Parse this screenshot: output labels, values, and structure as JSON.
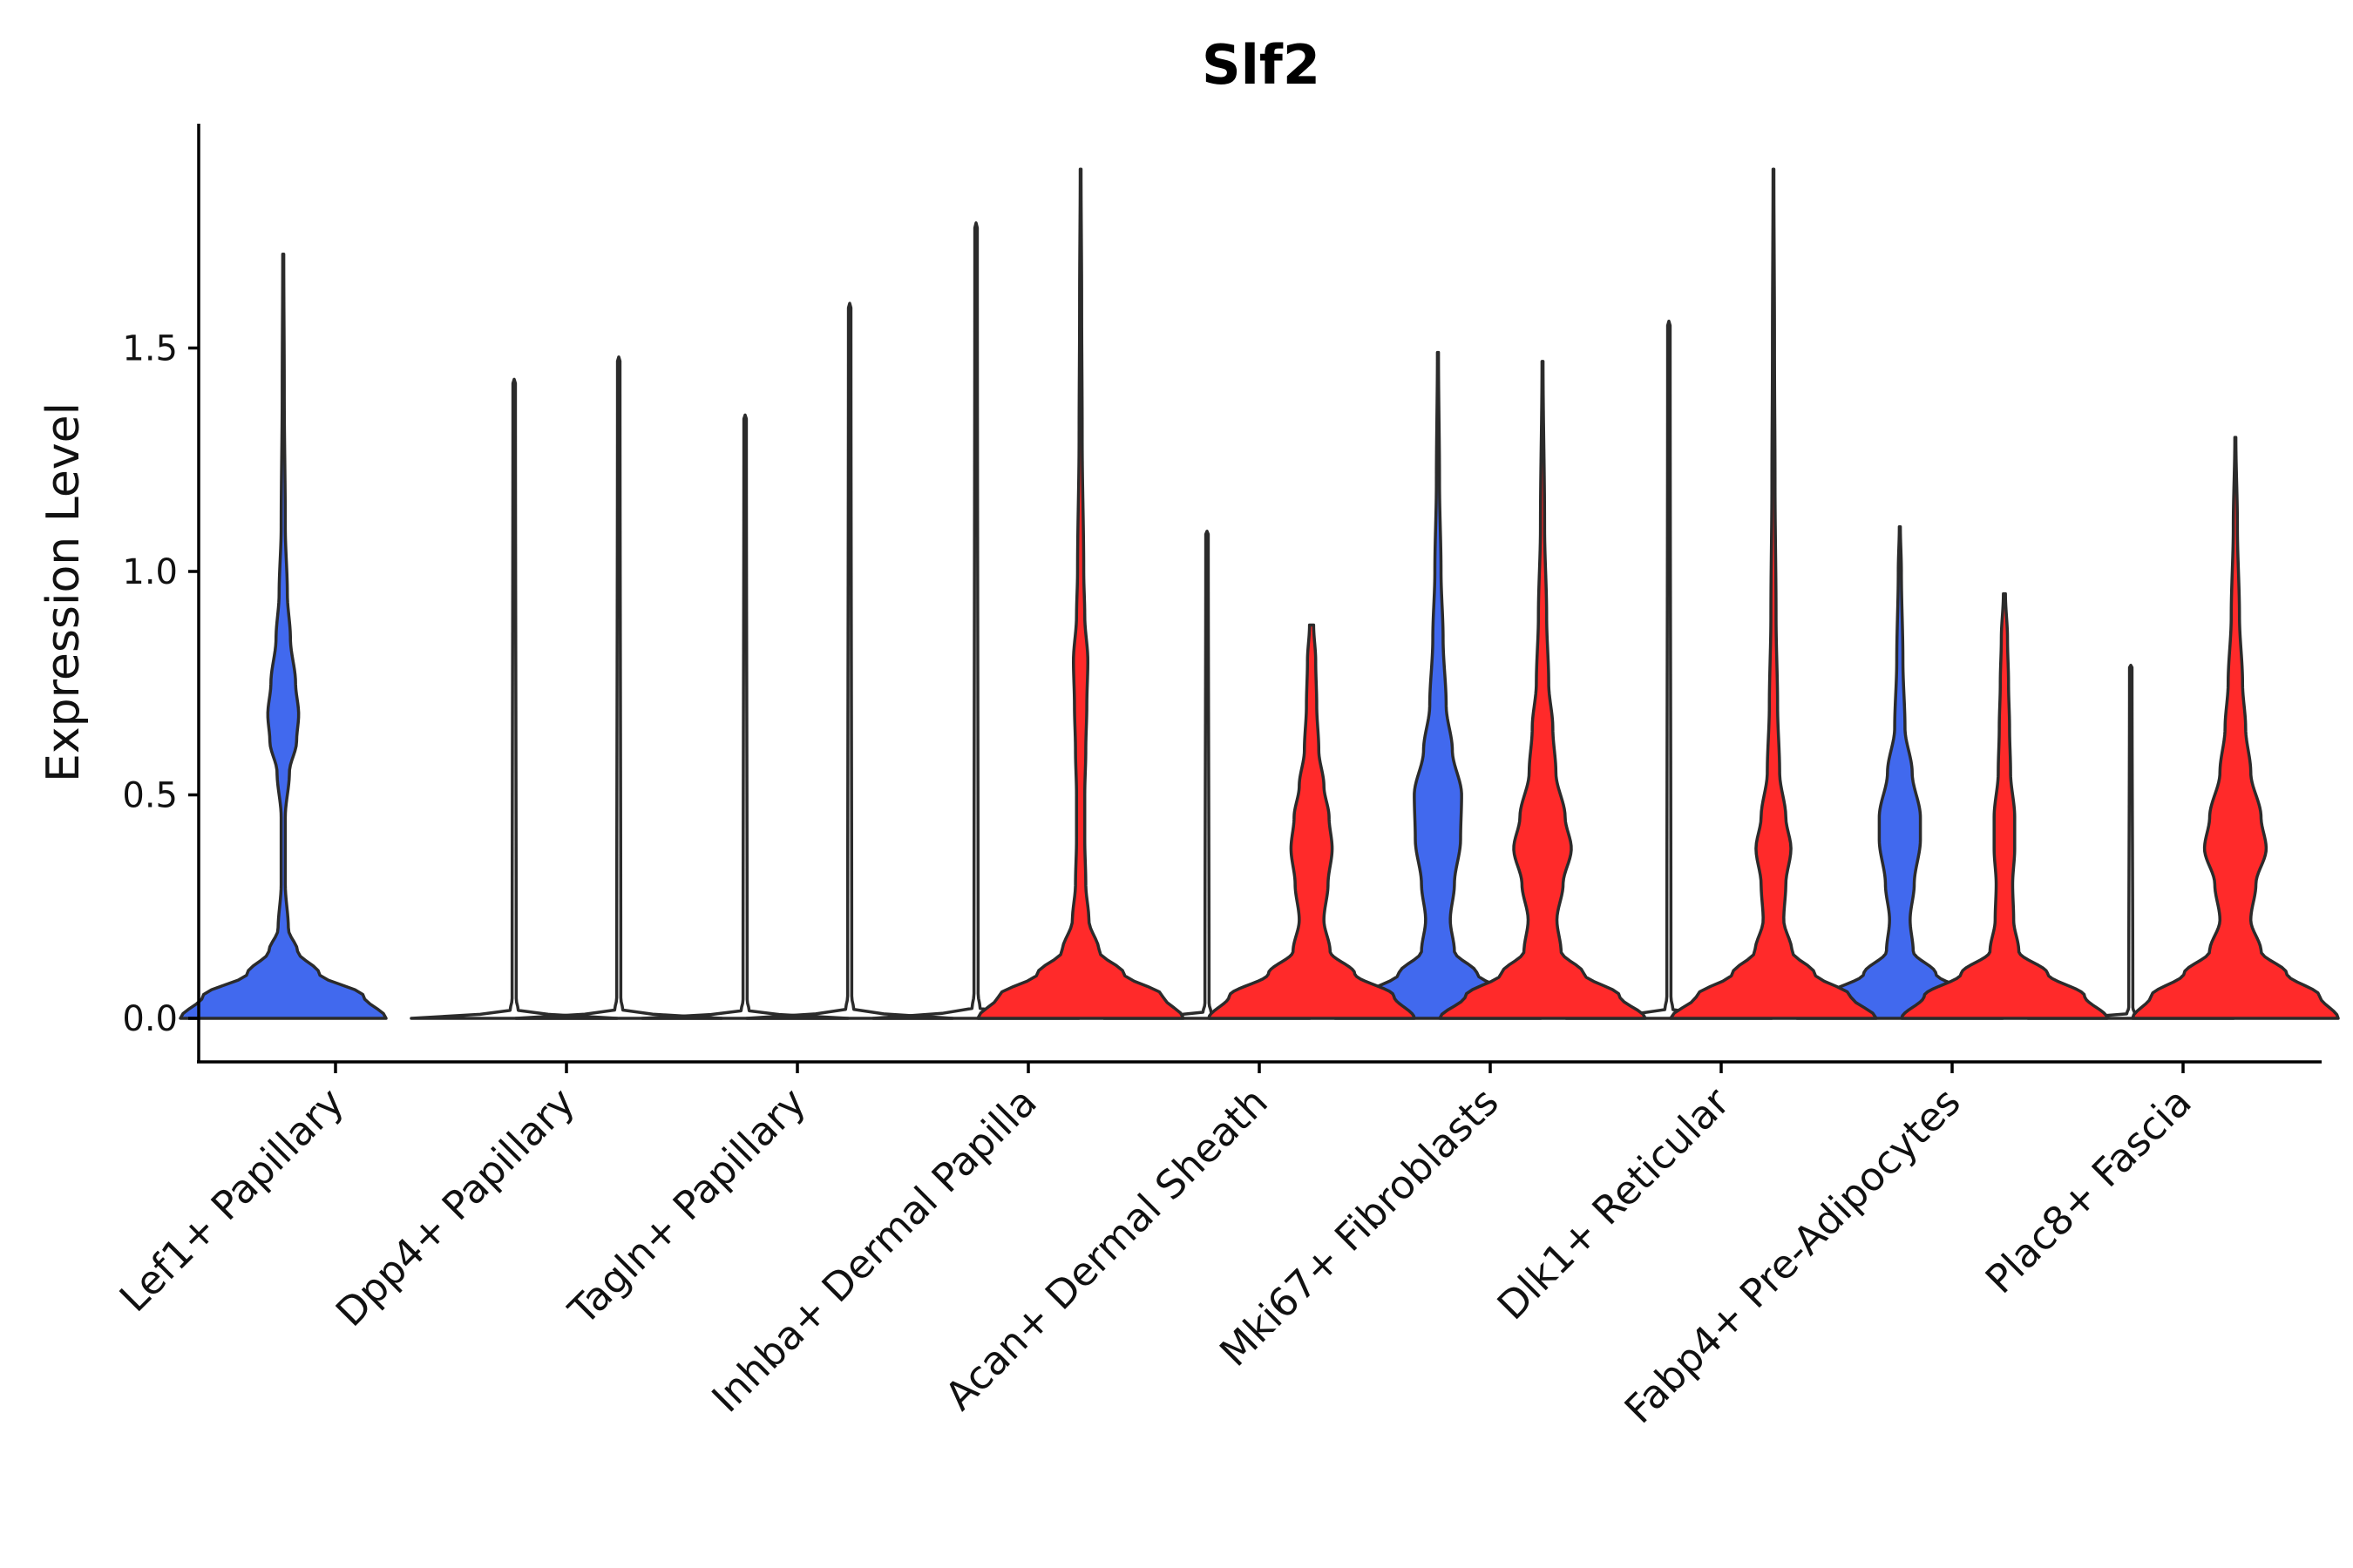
{
  "chart_data": {
    "type": "violin",
    "title": "Slf2",
    "xlabel": "",
    "ylabel": "Expression Level",
    "ylim": [
      -0.1,
      2.0
    ],
    "yticks": [
      0.0,
      0.5,
      1.0,
      1.5
    ],
    "ytick_labels": [
      "0.0",
      "0.5",
      "1.0",
      "1.5"
    ],
    "grid": false,
    "legend": "none",
    "colors": {
      "group_a": "#4169EE",
      "group_b": "#FF2A2A",
      "outline": "#2b2b2b"
    },
    "categories": [
      "Lef1+ Papillary",
      "Dpp4+ Papillary",
      "Tagln+ Papillary",
      "Inhba+ Dermal Papilla",
      "Acan+ Dermal Sheath",
      "Mki67+ Fibroblasts",
      "Dlk1+ Reticular",
      "Fabp4+ Pre-Adipocytes",
      "Plac8+ Fascia"
    ],
    "series": [
      {
        "name": "group_a",
        "color": "#4169EE",
        "violins": [
          {
            "category": "Lef1+ Papillary",
            "max": 1.71,
            "filled": true,
            "profile": [
              [
                0,
                1.0
              ],
              [
                0.05,
                0.78
              ],
              [
                0.1,
                0.35
              ],
              [
                0.15,
                0.14
              ],
              [
                0.2,
                0.05
              ],
              [
                0.3,
                0.02
              ],
              [
                0.45,
                0.02
              ],
              [
                0.55,
                0.06
              ],
              [
                0.62,
                0.13
              ],
              [
                0.68,
                0.15
              ],
              [
                0.75,
                0.12
              ],
              [
                0.85,
                0.07
              ],
              [
                0.95,
                0.04
              ],
              [
                1.1,
                0.02
              ],
              [
                1.4,
                0.01
              ],
              [
                1.71,
                0.005
              ]
            ]
          },
          {
            "category": "Dpp4+ Papillary",
            "max": 1.43,
            "filled": false
          },
          {
            "category": "Tagln+ Papillary",
            "max": 1.35,
            "filled": false
          },
          {
            "category": "Inhba+ Dermal Papilla",
            "max": 1.78,
            "filled": false
          },
          {
            "category": "Acan+ Dermal Sheath",
            "max": 1.09,
            "filled": false
          },
          {
            "category": "Mki67+ Fibroblasts",
            "max": 1.49,
            "filled": true,
            "profile": [
              [
                0,
                1.0
              ],
              [
                0.05,
                0.72
              ],
              [
                0.1,
                0.38
              ],
              [
                0.15,
                0.16
              ],
              [
                0.22,
                0.12
              ],
              [
                0.3,
                0.16
              ],
              [
                0.4,
                0.22
              ],
              [
                0.5,
                0.23
              ],
              [
                0.6,
                0.14
              ],
              [
                0.7,
                0.08
              ],
              [
                0.85,
                0.05
              ],
              [
                1.0,
                0.03
              ],
              [
                1.2,
                0.015
              ],
              [
                1.49,
                0.005
              ]
            ]
          },
          {
            "category": "Dlk1+ Reticular",
            "max": 1.56,
            "filled": false
          },
          {
            "category": "Fabp4+ Pre-Adipocytes",
            "max": 1.1,
            "filled": true,
            "profile": [
              [
                0,
                1.0
              ],
              [
                0.05,
                0.72
              ],
              [
                0.1,
                0.35
              ],
              [
                0.15,
                0.13
              ],
              [
                0.22,
                0.1
              ],
              [
                0.3,
                0.14
              ],
              [
                0.4,
                0.2
              ],
              [
                0.45,
                0.2
              ],
              [
                0.55,
                0.12
              ],
              [
                0.65,
                0.05
              ],
              [
                0.8,
                0.03
              ],
              [
                1.0,
                0.015
              ],
              [
                1.1,
                0.005
              ]
            ]
          },
          {
            "category": "Plac8+ Fascia",
            "max": 0.79,
            "filled": false
          }
        ]
      },
      {
        "name": "group_b",
        "color": "#FF2A2A",
        "violins": [
          {
            "category": "Lef1+ Papillary",
            "max": null,
            "filled": false
          },
          {
            "category": "Dpp4+ Papillary",
            "max": 1.48,
            "filled": false
          },
          {
            "category": "Tagln+ Papillary",
            "max": 1.6,
            "filled": false
          },
          {
            "category": "Inhba+ Dermal Papilla",
            "max": 1.9,
            "filled": true,
            "profile": [
              [
                0,
                1.0
              ],
              [
                0.05,
                0.8
              ],
              [
                0.1,
                0.42
              ],
              [
                0.15,
                0.18
              ],
              [
                0.22,
                0.08
              ],
              [
                0.3,
                0.05
              ],
              [
                0.4,
                0.04
              ],
              [
                0.5,
                0.04
              ],
              [
                0.6,
                0.05
              ],
              [
                0.7,
                0.06
              ],
              [
                0.8,
                0.07
              ],
              [
                0.9,
                0.04
              ],
              [
                1.0,
                0.03
              ],
              [
                1.3,
                0.015
              ],
              [
                1.6,
                0.01
              ],
              [
                1.9,
                0.004
              ]
            ]
          },
          {
            "category": "Acan+ Dermal Sheath",
            "max": 0.88,
            "filled": true,
            "profile": [
              [
                0,
                1.0
              ],
              [
                0.05,
                0.8
              ],
              [
                0.1,
                0.42
              ],
              [
                0.15,
                0.18
              ],
              [
                0.22,
                0.12
              ],
              [
                0.3,
                0.16
              ],
              [
                0.38,
                0.2
              ],
              [
                0.45,
                0.17
              ],
              [
                0.52,
                0.12
              ],
              [
                0.6,
                0.07
              ],
              [
                0.7,
                0.05
              ],
              [
                0.8,
                0.04
              ],
              [
                0.88,
                0.02
              ]
            ]
          },
          {
            "category": "Mki67+ Fibroblasts",
            "max": 1.47,
            "filled": true,
            "profile": [
              [
                0,
                1.0
              ],
              [
                0.05,
                0.75
              ],
              [
                0.1,
                0.4
              ],
              [
                0.15,
                0.18
              ],
              [
                0.22,
                0.14
              ],
              [
                0.3,
                0.2
              ],
              [
                0.38,
                0.28
              ],
              [
                0.45,
                0.22
              ],
              [
                0.55,
                0.13
              ],
              [
                0.65,
                0.1
              ],
              [
                0.75,
                0.06
              ],
              [
                0.9,
                0.04
              ],
              [
                1.1,
                0.02
              ],
              [
                1.47,
                0.005
              ]
            ]
          },
          {
            "category": "Dlk1+ Reticular",
            "max": 1.9,
            "filled": true,
            "profile": [
              [
                0,
                1.0
              ],
              [
                0.05,
                0.75
              ],
              [
                0.1,
                0.4
              ],
              [
                0.15,
                0.18
              ],
              [
                0.22,
                0.1
              ],
              [
                0.3,
                0.12
              ],
              [
                0.38,
                0.17
              ],
              [
                0.45,
                0.12
              ],
              [
                0.55,
                0.06
              ],
              [
                0.7,
                0.04
              ],
              [
                0.9,
                0.025
              ],
              [
                1.2,
                0.015
              ],
              [
                1.5,
                0.01
              ],
              [
                1.9,
                0.004
              ]
            ]
          },
          {
            "category": "Fabp4+ Pre-Adipocytes",
            "max": 0.95,
            "filled": true,
            "profile": [
              [
                0,
                1.0
              ],
              [
                0.05,
                0.78
              ],
              [
                0.1,
                0.42
              ],
              [
                0.15,
                0.14
              ],
              [
                0.22,
                0.09
              ],
              [
                0.3,
                0.08
              ],
              [
                0.38,
                0.1
              ],
              [
                0.45,
                0.1
              ],
              [
                0.55,
                0.06
              ],
              [
                0.65,
                0.05
              ],
              [
                0.75,
                0.04
              ],
              [
                0.85,
                0.03
              ],
              [
                0.95,
                0.01
              ]
            ]
          },
          {
            "category": "Plac8+ Fascia",
            "max": 1.3,
            "filled": true,
            "profile": [
              [
                0,
                1.0
              ],
              [
                0.05,
                0.82
              ],
              [
                0.1,
                0.5
              ],
              [
                0.15,
                0.25
              ],
              [
                0.22,
                0.15
              ],
              [
                0.3,
                0.2
              ],
              [
                0.38,
                0.3
              ],
              [
                0.45,
                0.25
              ],
              [
                0.55,
                0.15
              ],
              [
                0.65,
                0.1
              ],
              [
                0.75,
                0.07
              ],
              [
                0.9,
                0.04
              ],
              [
                1.1,
                0.02
              ],
              [
                1.3,
                0.005
              ]
            ]
          }
        ]
      }
    ]
  }
}
